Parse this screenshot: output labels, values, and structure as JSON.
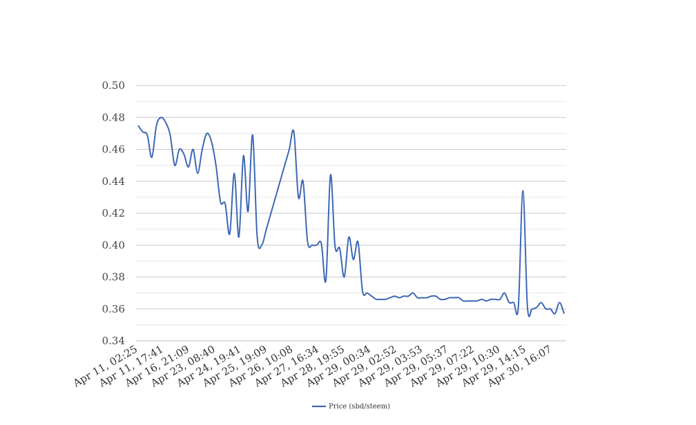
{
  "chart_data": {
    "type": "line",
    "title": "",
    "xlabel": "",
    "ylabel": "",
    "ylim": [
      0.34,
      0.5
    ],
    "y_ticks": [
      "0.50",
      "0.48",
      "0.46",
      "0.44",
      "0.42",
      "0.40",
      "0.38",
      "0.36",
      "0.34"
    ],
    "x_tick_labels": [
      "Apr 11, 02:25",
      "Apr 11, 17:41",
      "Apr 16, 21:09",
      "Apr 23, 08:40",
      "Apr 24, 19:41",
      "Apr 25, 19:09",
      "Apr 26, 10:08",
      "Apr 27, 16:34",
      "Apr 28, 19:55",
      "Apr 29, 00:34",
      "Apr 29, 02:52",
      "Apr 29, 03:53",
      "Apr 29, 05:37",
      "Apr 29, 07:22",
      "Apr 29, 10:30",
      "Apr 29, 14:15",
      "Apr 30, 16:07"
    ],
    "grid": true,
    "legend_position": "bottom",
    "colors": {
      "line": "#3c67b5",
      "grid_major": "#c8c8c8",
      "grid_minor": "#e6e6e6",
      "axis": "#bdbdbd"
    },
    "series": [
      {
        "name": "Price (sbd/steem)",
        "values": [
          0.475,
          0.471,
          0.469,
          0.455,
          0.475,
          0.48,
          0.477,
          0.469,
          0.45,
          0.46,
          0.457,
          0.449,
          0.46,
          0.445,
          0.46,
          0.47,
          0.465,
          0.45,
          0.427,
          0.426,
          0.407,
          0.445,
          0.405,
          0.456,
          0.421,
          0.469,
          0.405,
          0.4,
          0.41,
          0.42,
          0.43,
          0.44,
          0.45,
          0.46,
          0.471,
          0.43,
          0.44,
          0.402,
          0.4,
          0.4,
          0.401,
          0.378,
          0.444,
          0.399,
          0.398,
          0.38,
          0.405,
          0.391,
          0.402,
          0.371,
          0.37,
          0.368,
          0.366,
          0.366,
          0.366,
          0.367,
          0.368,
          0.367,
          0.368,
          0.368,
          0.37,
          0.367,
          0.367,
          0.367,
          0.368,
          0.368,
          0.366,
          0.366,
          0.367,
          0.367,
          0.367,
          0.365,
          0.365,
          0.365,
          0.365,
          0.366,
          0.365,
          0.366,
          0.366,
          0.366,
          0.37,
          0.364,
          0.364,
          0.361,
          0.434,
          0.361,
          0.36,
          0.361,
          0.364,
          0.36,
          0.36,
          0.357,
          0.364,
          0.357
        ]
      }
    ]
  }
}
